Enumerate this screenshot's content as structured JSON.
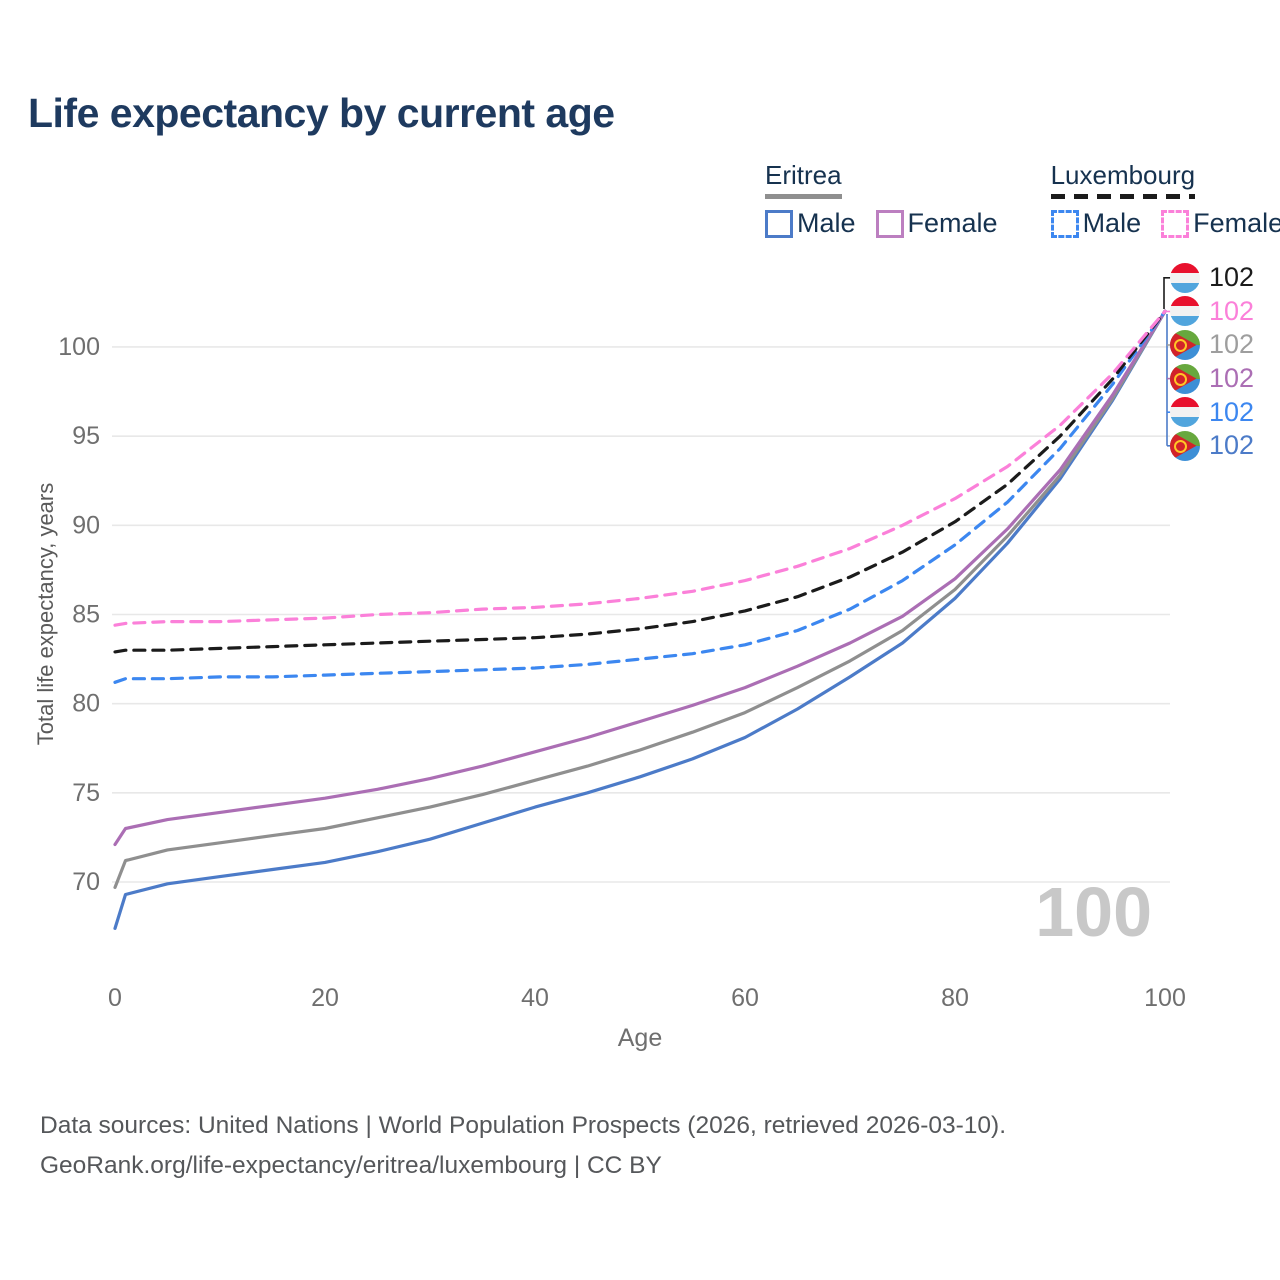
{
  "header": {
    "title": "Life expectancy by current age"
  },
  "legend": {
    "groups": [
      {
        "country": "Eritrea",
        "style": "solid",
        "total_color": "#8f8f8f",
        "items": [
          {
            "label": "Male",
            "color": "#4c7bc8"
          },
          {
            "label": "Female",
            "color": "#bc7fc0"
          }
        ]
      },
      {
        "country": "Luxembourg",
        "style": "dashed",
        "total_color": "#1b1b1b",
        "items": [
          {
            "label": "Male",
            "color": "#3c87f0"
          },
          {
            "label": "Female",
            "color": "#fb80d9"
          }
        ]
      }
    ]
  },
  "chart_data": {
    "type": "line",
    "title": "Life expectancy by current age",
    "xlabel": "Age",
    "ylabel": "Total life expectancy, years",
    "x_ticks": [
      0,
      20,
      40,
      60,
      80,
      100
    ],
    "y_ticks": [
      70,
      75,
      80,
      85,
      90,
      95,
      100
    ],
    "xlim": [
      0,
      100
    ],
    "ylim": [
      66,
      104
    ],
    "grid": "horizontal",
    "ages": [
      0,
      1,
      5,
      10,
      15,
      20,
      25,
      30,
      35,
      40,
      45,
      50,
      55,
      60,
      65,
      70,
      75,
      80,
      85,
      90,
      95,
      100
    ],
    "series": [
      {
        "name": "Eritrea Male",
        "country": "Eritrea",
        "sex": "Male",
        "style": "solid",
        "color": "#4c7bc8",
        "values": [
          67.4,
          69.3,
          69.9,
          70.3,
          70.7,
          71.1,
          71.7,
          72.4,
          73.3,
          74.2,
          75.0,
          75.9,
          76.9,
          78.1,
          79.7,
          81.5,
          83.4,
          85.9,
          89.0,
          92.6,
          97.0,
          102
        ]
      },
      {
        "name": "Eritrea Total",
        "country": "Eritrea",
        "sex": "Both",
        "style": "solid",
        "color": "#8f8f8f",
        "values": [
          69.7,
          71.2,
          71.8,
          72.2,
          72.6,
          73.0,
          73.6,
          74.2,
          74.9,
          75.7,
          76.5,
          77.4,
          78.4,
          79.5,
          80.9,
          82.4,
          84.1,
          86.4,
          89.4,
          92.8,
          97.1,
          102
        ]
      },
      {
        "name": "Eritrea Female",
        "country": "Eritrea",
        "sex": "Female",
        "style": "solid",
        "color": "#ab6eb4",
        "values": [
          72.1,
          73.0,
          73.5,
          73.9,
          74.3,
          74.7,
          75.2,
          75.8,
          76.5,
          77.3,
          78.1,
          79.0,
          79.9,
          80.9,
          82.1,
          83.4,
          84.9,
          87.0,
          89.8,
          93.1,
          97.3,
          102
        ]
      },
      {
        "name": "Luxembourg Male",
        "country": "Luxembourg",
        "sex": "Male",
        "style": "dashed",
        "color": "#3c87f0",
        "values": [
          81.2,
          81.4,
          81.4,
          81.5,
          81.5,
          81.6,
          81.7,
          81.8,
          81.9,
          82.0,
          82.2,
          82.5,
          82.8,
          83.3,
          84.1,
          85.3,
          86.9,
          88.9,
          91.3,
          94.3,
          97.9,
          102
        ]
      },
      {
        "name": "Luxembourg Total",
        "country": "Luxembourg",
        "sex": "Both",
        "style": "dashed",
        "color": "#1b1b1b",
        "values": [
          82.9,
          83.0,
          83.0,
          83.1,
          83.2,
          83.3,
          83.4,
          83.5,
          83.6,
          83.7,
          83.9,
          84.2,
          84.6,
          85.2,
          86.0,
          87.1,
          88.5,
          90.2,
          92.3,
          95.0,
          98.2,
          102
        ]
      },
      {
        "name": "Luxembourg Female",
        "country": "Luxembourg",
        "sex": "Female",
        "style": "dashed",
        "color": "#fb80d9",
        "values": [
          84.4,
          84.5,
          84.6,
          84.6,
          84.7,
          84.8,
          85.0,
          85.1,
          85.3,
          85.4,
          85.6,
          85.9,
          86.3,
          86.9,
          87.7,
          88.7,
          90.0,
          91.5,
          93.3,
          95.6,
          98.5,
          102
        ]
      }
    ],
    "end_age": 100,
    "end_value": 102
  },
  "end_labels": [
    {
      "flag": "luxembourg",
      "value": "102",
      "color": "#1b1b1b"
    },
    {
      "flag": "luxembourg",
      "value": "102",
      "color": "#fb80d9"
    },
    {
      "flag": "eritrea",
      "value": "102",
      "color": "#9e9e9e"
    },
    {
      "flag": "eritrea",
      "value": "102",
      "color": "#ab6eb4"
    },
    {
      "flag": "luxembourg",
      "value": "102",
      "color": "#3c87f0"
    },
    {
      "flag": "eritrea",
      "value": "102",
      "color": "#4c7bc8"
    }
  ],
  "watermark": "100",
  "footer": {
    "line1": "Data sources: United Nations | World Population Prospects (2026, retrieved 2026-03-10).",
    "line2": "GeoRank.org/life-expectancy/eritrea/luxembourg | CC BY"
  }
}
